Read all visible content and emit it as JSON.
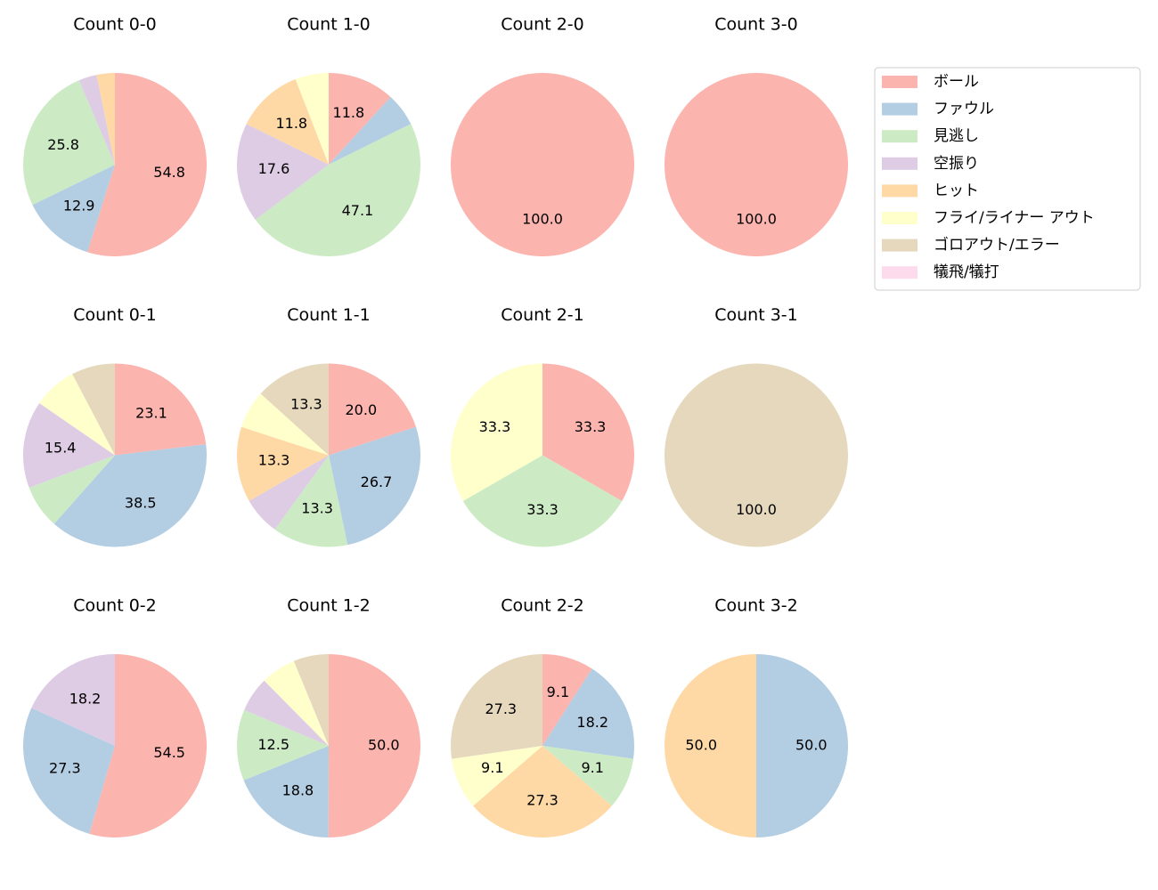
{
  "legend": {
    "labels": [
      "ボール",
      "ファウル",
      "見逃し",
      "空振り",
      "ヒット",
      "フライ/ライナー アウト",
      "ゴロアウト/エラー",
      "犠飛/犠打"
    ],
    "colors": [
      "#fbb4ae",
      "#b3cde3",
      "#ccebc5",
      "#decbe4",
      "#fed9a6",
      "#ffffcc",
      "#e5d8bd",
      "#fddaec"
    ]
  },
  "chart_data": [
    {
      "type": "pie",
      "title": "Count 0-0",
      "values": [
        54.8,
        12.9,
        25.8,
        3.2,
        3.2,
        0,
        0,
        0
      ],
      "value_labels": [
        "54.8",
        "12.9",
        "25.8",
        null,
        null,
        null,
        null,
        null
      ]
    },
    {
      "type": "pie",
      "title": "Count 1-0",
      "values": [
        11.8,
        5.9,
        47.1,
        17.6,
        11.8,
        5.9,
        0,
        0
      ],
      "value_labels": [
        "11.8",
        null,
        "47.1",
        "17.6",
        "11.8",
        null,
        null,
        null
      ]
    },
    {
      "type": "pie",
      "title": "Count 2-0",
      "values": [
        100,
        0,
        0,
        0,
        0,
        0,
        0,
        0
      ],
      "value_labels": [
        "100.0",
        null,
        null,
        null,
        null,
        null,
        null,
        null
      ]
    },
    {
      "type": "pie",
      "title": "Count 3-0",
      "values": [
        100,
        0,
        0,
        0,
        0,
        0,
        0,
        0
      ],
      "value_labels": [
        "100.0",
        null,
        null,
        null,
        null,
        null,
        null,
        null
      ]
    },
    {
      "type": "pie",
      "title": "Count 0-1",
      "values": [
        23.1,
        38.5,
        7.7,
        15.4,
        0,
        7.7,
        7.7,
        0
      ],
      "value_labels": [
        "23.1",
        "38.5",
        null,
        "15.4",
        null,
        null,
        null,
        null
      ]
    },
    {
      "type": "pie",
      "title": "Count 1-1",
      "values": [
        20.0,
        26.7,
        13.3,
        6.7,
        13.3,
        6.7,
        13.3,
        0
      ],
      "value_labels": [
        "20.0",
        "26.7",
        "13.3",
        null,
        "13.3",
        null,
        "13.3",
        null
      ]
    },
    {
      "type": "pie",
      "title": "Count 2-1",
      "values": [
        33.3,
        0,
        33.3,
        0,
        0,
        33.3,
        0,
        0
      ],
      "value_labels": [
        "33.3",
        null,
        "33.3",
        null,
        null,
        "33.3",
        null,
        null
      ]
    },
    {
      "type": "pie",
      "title": "Count 3-1",
      "values": [
        0,
        0,
        0,
        0,
        0,
        0,
        100,
        0
      ],
      "value_labels": [
        null,
        null,
        null,
        null,
        null,
        null,
        "100.0",
        null
      ]
    },
    {
      "type": "pie",
      "title": "Count 0-2",
      "values": [
        54.5,
        27.3,
        0,
        18.2,
        0,
        0,
        0,
        0
      ],
      "value_labels": [
        "54.5",
        "27.3",
        null,
        "18.2",
        null,
        null,
        null,
        null
      ]
    },
    {
      "type": "pie",
      "title": "Count 1-2",
      "values": [
        50.0,
        18.8,
        12.5,
        6.2,
        0,
        6.2,
        6.2,
        0
      ],
      "value_labels": [
        "50.0",
        "18.8",
        "12.5",
        null,
        null,
        null,
        null,
        null
      ]
    },
    {
      "type": "pie",
      "title": "Count 2-2",
      "values": [
        9.1,
        18.2,
        9.1,
        0,
        27.3,
        9.1,
        27.3,
        0
      ],
      "value_labels": [
        "9.1",
        "18.2",
        "9.1",
        null,
        "27.3",
        "9.1",
        "27.3",
        null
      ]
    },
    {
      "type": "pie",
      "title": "Count 3-2",
      "values": [
        0,
        50.0,
        0,
        0,
        50.0,
        0,
        0,
        0
      ],
      "value_labels": [
        null,
        "50.0",
        null,
        null,
        "50.0",
        null,
        null,
        null
      ]
    }
  ]
}
